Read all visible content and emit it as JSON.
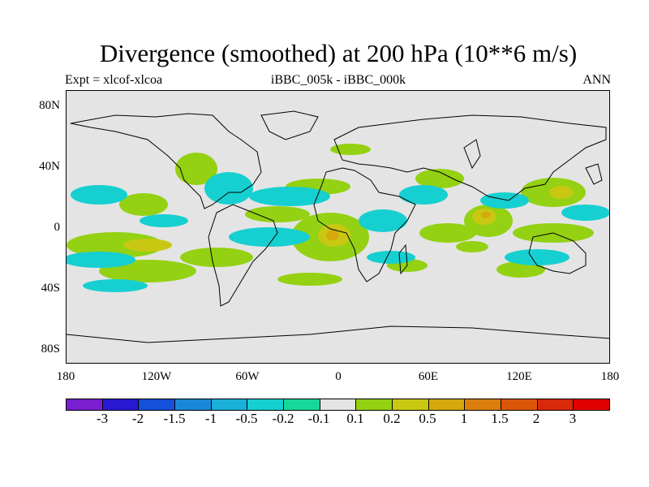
{
  "title": "Divergence (smoothed) at 200 hPa (10**6 m/s)",
  "subtitle_left": "Expt = xlcof-xlcoa",
  "subtitle_center": "iBBC_005k - iBBC_000k",
  "subtitle_right": "ANN",
  "lat_labels": [
    "80N",
    "40N",
    "0",
    "40S",
    "80S"
  ],
  "lon_labels": [
    "180",
    "120W",
    "60W",
    "0",
    "60E",
    "120E",
    "180"
  ],
  "colorbar": {
    "labels": [
      "-3",
      "-2",
      "-1.5",
      "-1",
      "-0.5",
      "-0.2",
      "-0.1",
      "0.1",
      "0.2",
      "0.5",
      "1",
      "1.5",
      "2",
      "3"
    ],
    "colors": [
      "#7a1fd0",
      "#2a19d2",
      "#1450d8",
      "#1a88d8",
      "#1ab0d8",
      "#16cfd0",
      "#18d79a",
      "#e4e4e4",
      "#94d112",
      "#c8c812",
      "#d6a80e",
      "#dc7e0c",
      "#dc560a",
      "#d82a0a",
      "#e00000"
    ]
  }
}
